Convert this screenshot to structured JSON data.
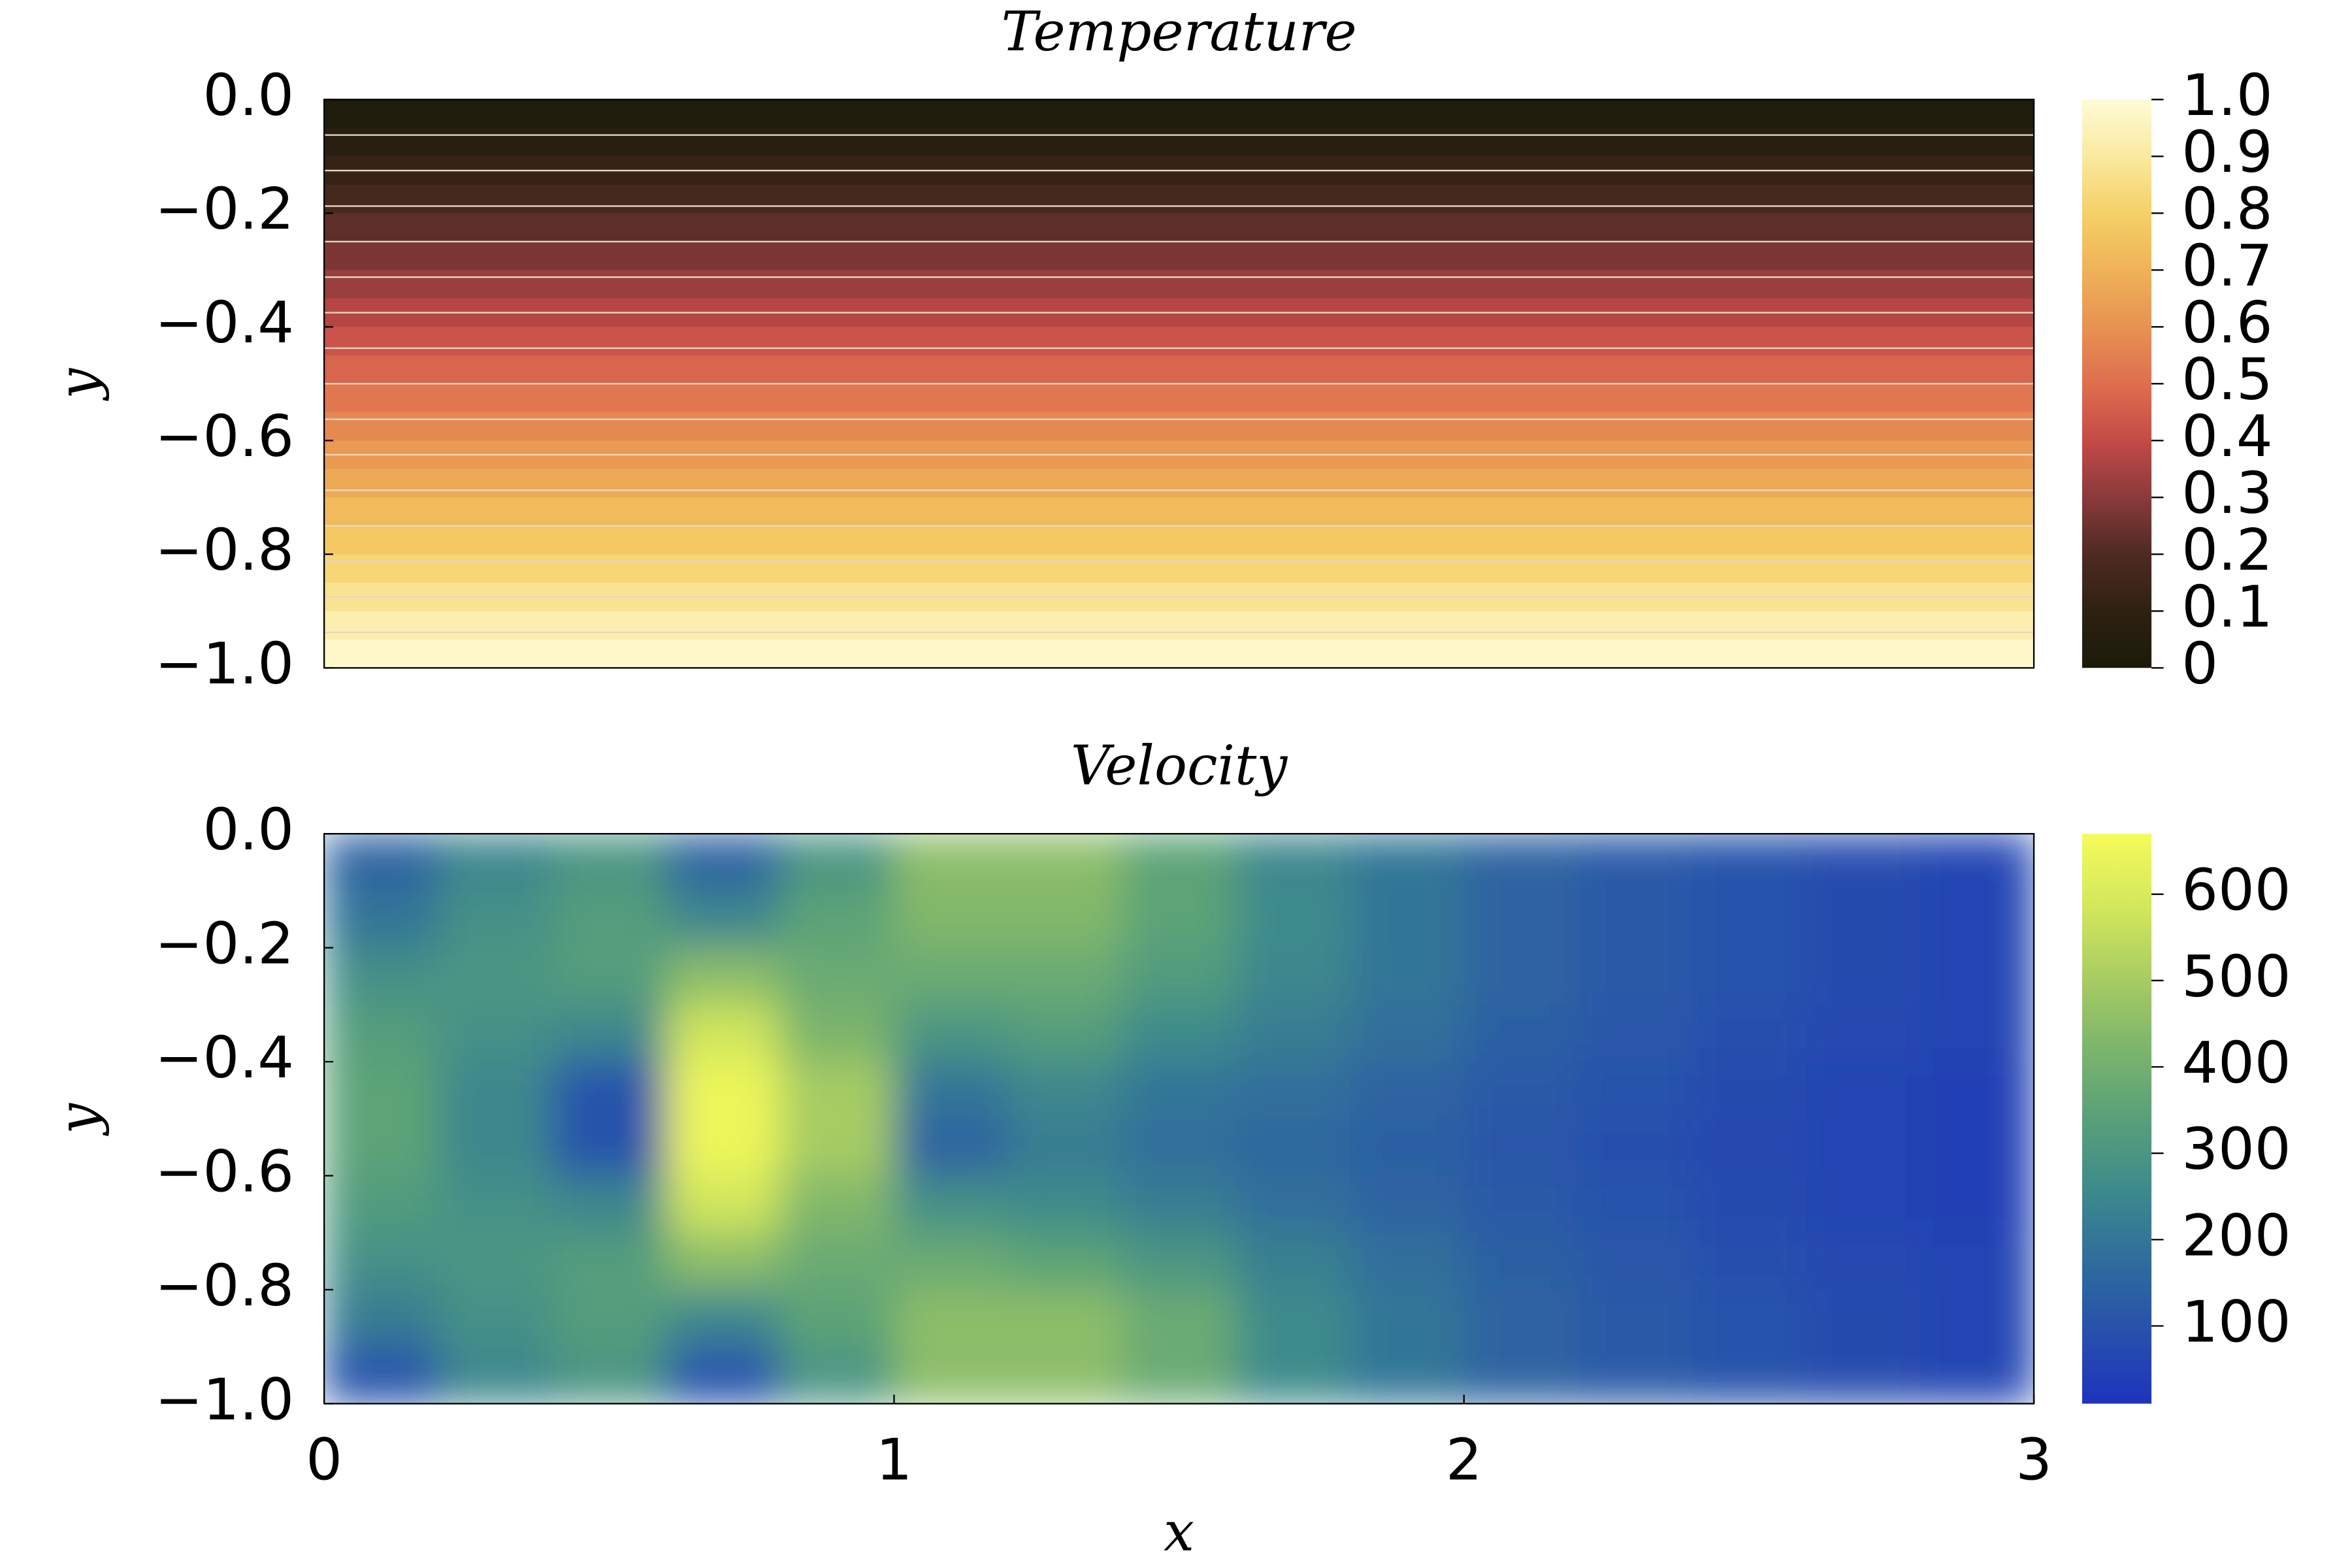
{
  "chart_data": [
    {
      "type": "heatmap",
      "title": "Temperature",
      "ylabel": "y",
      "x": [
        1.5
      ],
      "y": [
        -0.025,
        -0.075,
        -0.125,
        -0.175,
        -0.225,
        -0.275,
        -0.325,
        -0.375,
        -0.425,
        -0.475,
        -0.525,
        -0.575,
        -0.625,
        -0.675,
        -0.725,
        -0.775,
        -0.825,
        -0.875,
        -0.925,
        -0.975
      ],
      "z": [
        [
          0.025
        ],
        [
          0.075
        ],
        [
          0.125
        ],
        [
          0.175
        ],
        [
          0.225
        ],
        [
          0.275
        ],
        [
          0.325
        ],
        [
          0.375
        ],
        [
          0.425
        ],
        [
          0.475
        ],
        [
          0.525
        ],
        [
          0.575
        ],
        [
          0.625
        ],
        [
          0.675
        ],
        [
          0.725
        ],
        [
          0.775
        ],
        [
          0.825
        ],
        [
          0.875
        ],
        [
          0.925
        ],
        [
          0.975
        ]
      ],
      "xlim": [
        0,
        3
      ],
      "ylim": [
        -1,
        0
      ],
      "yticks": [
        {
          "value": 0,
          "label": "0.0"
        },
        {
          "value": -0.2,
          "label": "−0.2"
        },
        {
          "value": -0.4,
          "label": "−0.4"
        },
        {
          "value": -0.6,
          "label": "−0.6"
        },
        {
          "value": -0.8,
          "label": "−0.8"
        },
        {
          "value": -1,
          "label": "−1.0"
        }
      ],
      "clim": [
        0,
        1
      ],
      "cticks": [
        0,
        0.1,
        0.2,
        0.3,
        0.4,
        0.5,
        0.6,
        0.7,
        0.8,
        0.9,
        {
          "value": 1,
          "label": "1.0"
        }
      ],
      "colormap": [
        "#1a1a08",
        "#2e2112",
        "#4f2a22",
        "#8a3a3b",
        "#c44a47",
        "#df6e4f",
        "#e89252",
        "#efb257",
        "#f5d067",
        "#fae9a0",
        "#fefbd6"
      ],
      "contour_levels": [
        0.0625,
        0.125,
        0.1875,
        0.25,
        0.3125,
        0.375,
        0.4375,
        0.5,
        0.5625,
        0.625,
        0.6875,
        0.75,
        0.8125,
        0.875,
        0.9375
      ],
      "contour_color": "#e6d6c2"
    },
    {
      "type": "heatmap",
      "title": "Velocity",
      "xlabel": "x",
      "ylabel": "y",
      "x": [
        0.1,
        0.3,
        0.5,
        0.7,
        0.9,
        1.1,
        1.3,
        1.5,
        1.7,
        1.9,
        2.1,
        2.3,
        2.5,
        2.7,
        2.9
      ],
      "y": [
        -0.05,
        -0.15,
        -0.25,
        -0.35,
        -0.45,
        -0.55,
        -0.65,
        -0.75,
        -0.85,
        -0.95
      ],
      "z": [
        [
          150,
          250,
          300,
          150,
          300,
          450,
          450,
          350,
          250,
          200,
          150,
          120,
          100,
          80,
          60
        ],
        [
          200,
          280,
          330,
          250,
          350,
          430,
          430,
          350,
          260,
          200,
          150,
          120,
          100,
          80,
          60
        ],
        [
          280,
          300,
          330,
          450,
          380,
          380,
          380,
          320,
          250,
          200,
          150,
          120,
          100,
          80,
          60
        ],
        [
          330,
          280,
          250,
          580,
          420,
          300,
          330,
          260,
          220,
          180,
          140,
          110,
          90,
          70,
          60
        ],
        [
          350,
          250,
          100,
          650,
          500,
          200,
          250,
          200,
          180,
          150,
          120,
          100,
          80,
          60,
          50
        ],
        [
          350,
          250,
          100,
          650,
          500,
          150,
          220,
          180,
          160,
          140,
          110,
          90,
          70,
          60,
          50
        ],
        [
          320,
          280,
          250,
          580,
          430,
          280,
          260,
          220,
          180,
          150,
          120,
          100,
          80,
          60,
          50
        ],
        [
          280,
          300,
          330,
          450,
          380,
          380,
          350,
          300,
          230,
          180,
          140,
          110,
          90,
          70,
          60
        ],
        [
          220,
          280,
          330,
          250,
          350,
          450,
          450,
          380,
          260,
          200,
          150,
          120,
          100,
          80,
          60
        ],
        [
          100,
          250,
          300,
          100,
          300,
          450,
          450,
          380,
          260,
          200,
          150,
          120,
          100,
          80,
          60
        ]
      ],
      "xlim": [
        0,
        3
      ],
      "ylim": [
        -1,
        0
      ],
      "xticks": [
        0,
        1,
        2,
        3
      ],
      "yticks": [
        {
          "value": 0,
          "label": "0.0"
        },
        {
          "value": -0.2,
          "label": "−0.2"
        },
        {
          "value": -0.4,
          "label": "−0.4"
        },
        {
          "value": -0.6,
          "label": "−0.6"
        },
        {
          "value": -0.8,
          "label": "−0.8"
        },
        {
          "value": -1,
          "label": "−1.0"
        }
      ],
      "clim": [
        10,
        670
      ],
      "cticks": [
        100,
        200,
        300,
        400,
        500,
        600
      ],
      "colormap": [
        "#1e33bd",
        "#2750ad",
        "#2f6d9c",
        "#3d8a8c",
        "#58a079",
        "#7db56c",
        "#a9cd62",
        "#d4e85c",
        "#f5fb5a"
      ]
    }
  ]
}
